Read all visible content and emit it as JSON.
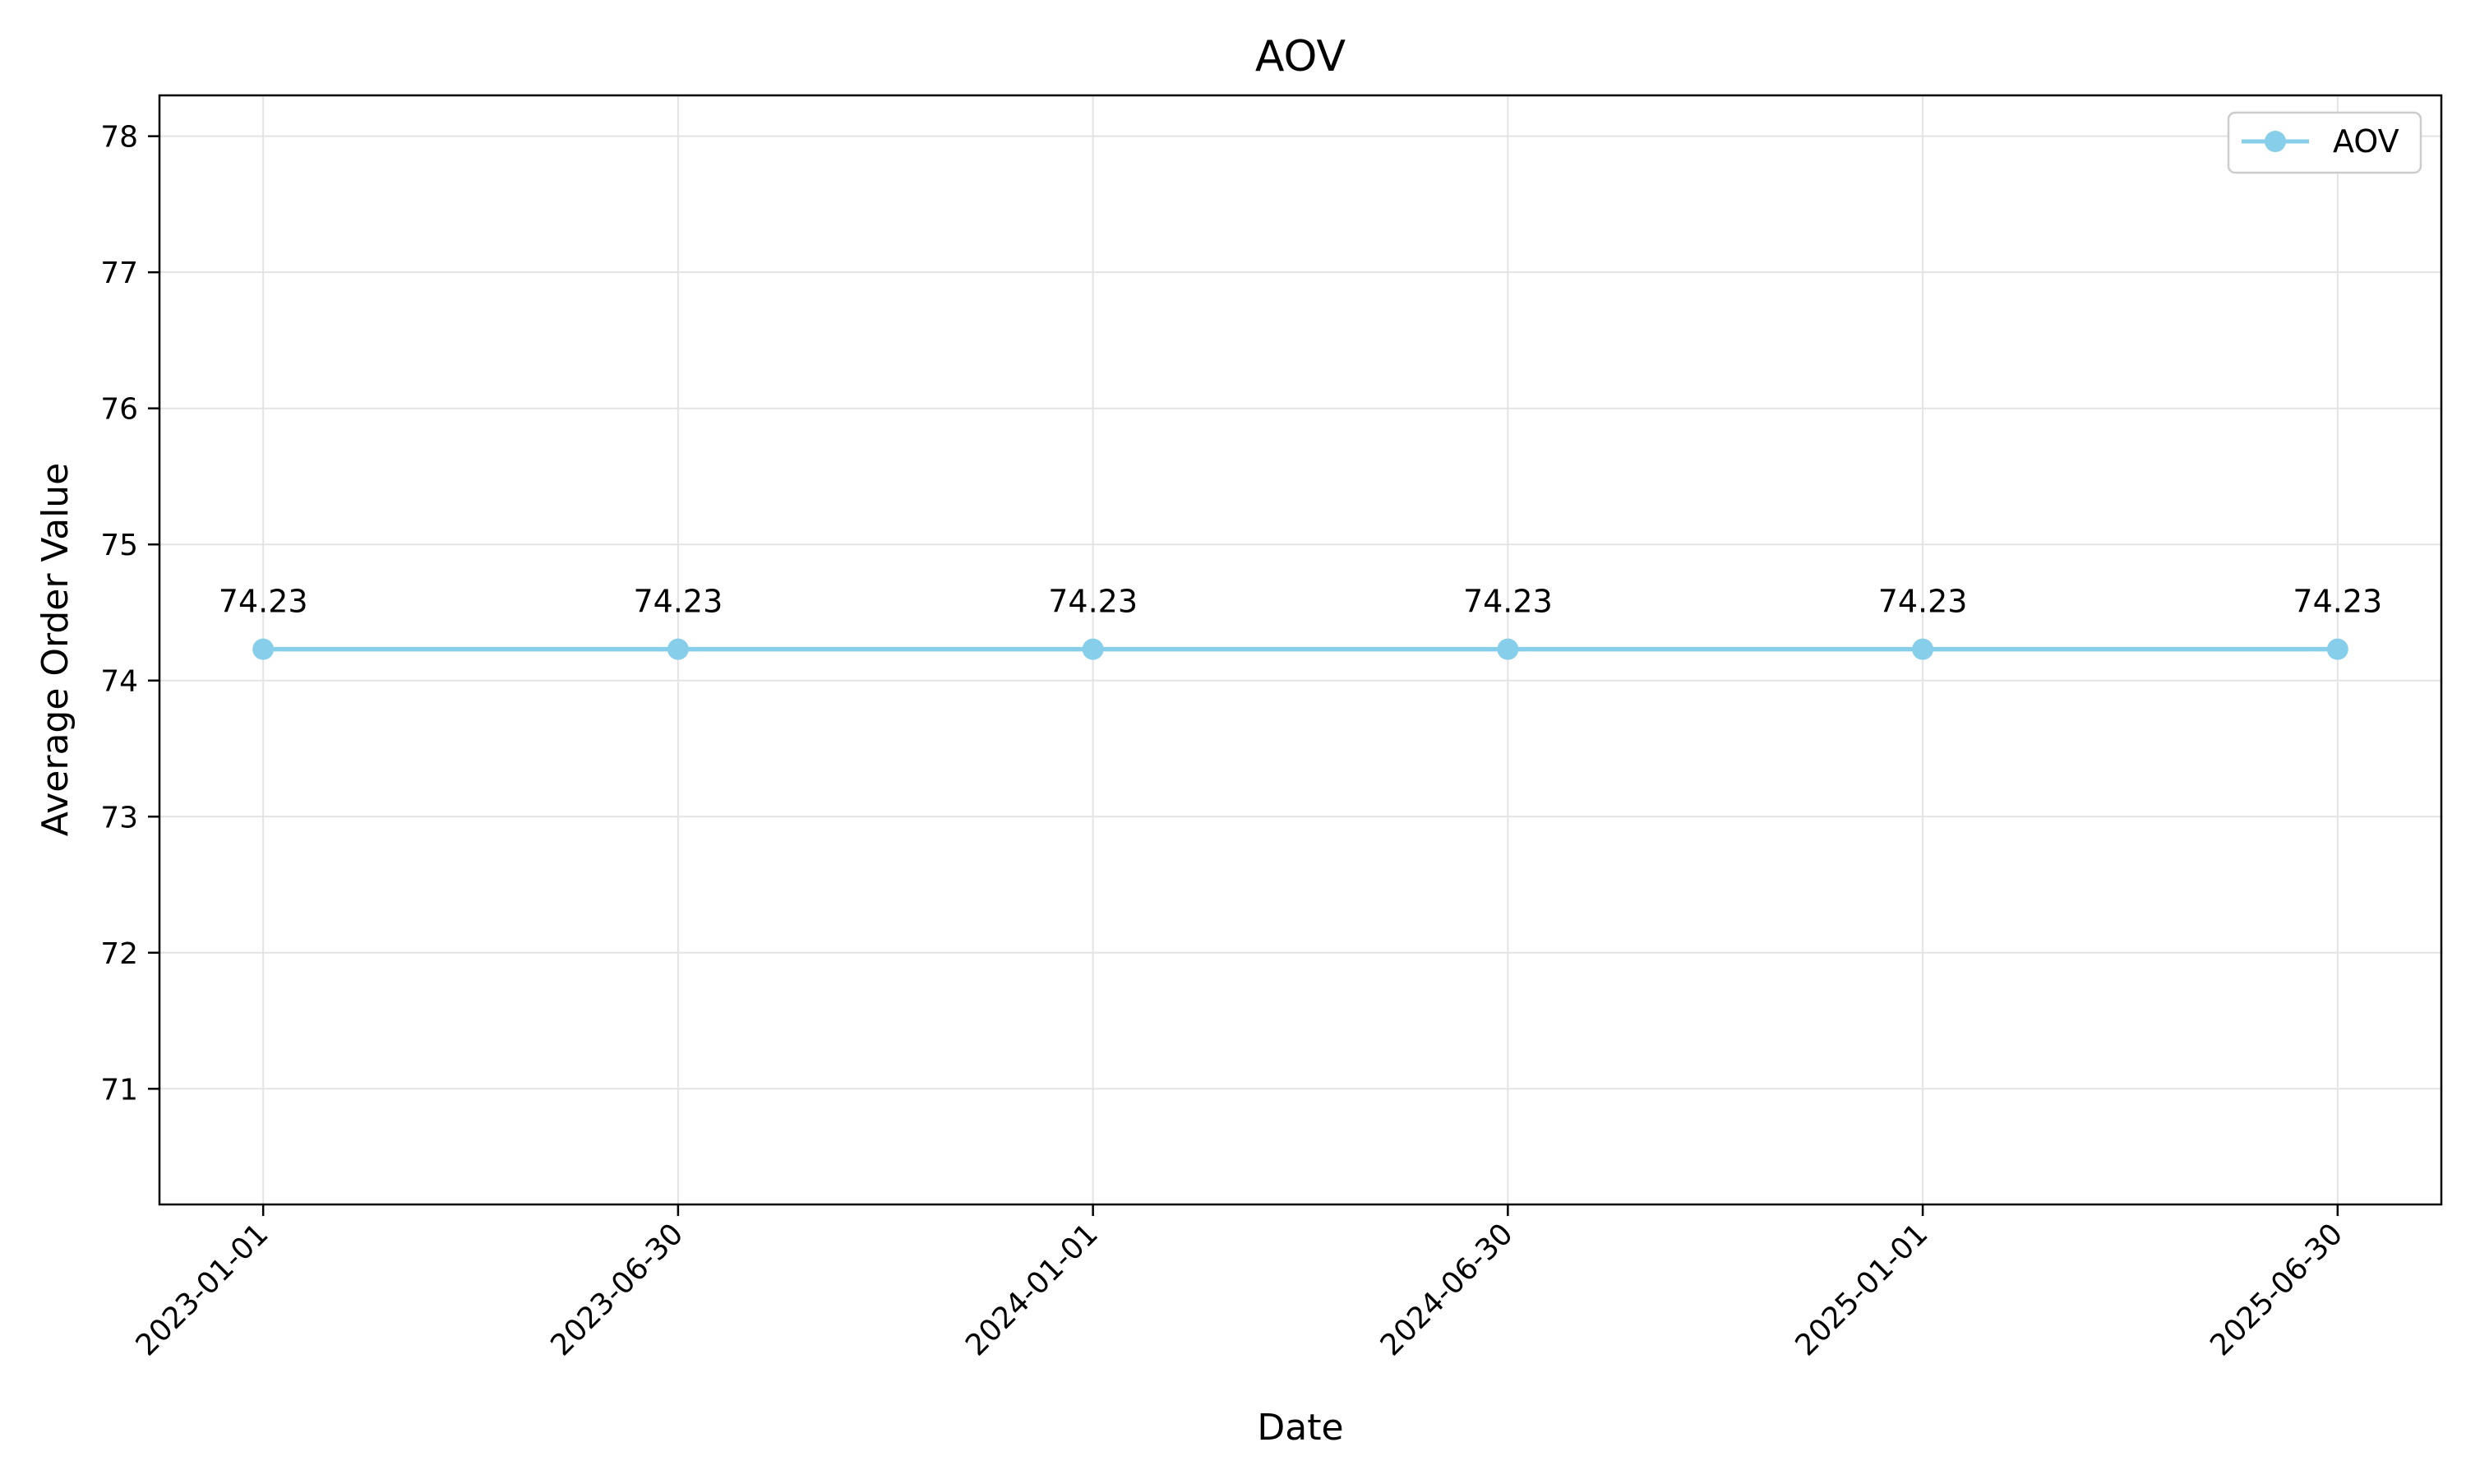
{
  "chart_data": {
    "type": "line",
    "title": "AOV",
    "xlabel": "Date",
    "ylabel": "Average Order Value",
    "categories": [
      "2023-01-01",
      "2023-06-30",
      "2024-01-01",
      "2024-06-30",
      "2025-01-01",
      "2025-06-30"
    ],
    "series": [
      {
        "name": "AOV",
        "values": [
          74.23,
          74.23,
          74.23,
          74.23,
          74.23,
          74.23
        ],
        "data_labels": [
          "74.23",
          "74.23",
          "74.23",
          "74.23",
          "74.23",
          "74.23"
        ],
        "color": "#87ceeb",
        "marker": "circle"
      }
    ],
    "ylim": [
      70.15,
      78.3
    ],
    "yticks": [
      "71",
      "72",
      "73",
      "74",
      "75",
      "76",
      "77",
      "78"
    ],
    "grid": true,
    "legend_position": "top-right"
  }
}
